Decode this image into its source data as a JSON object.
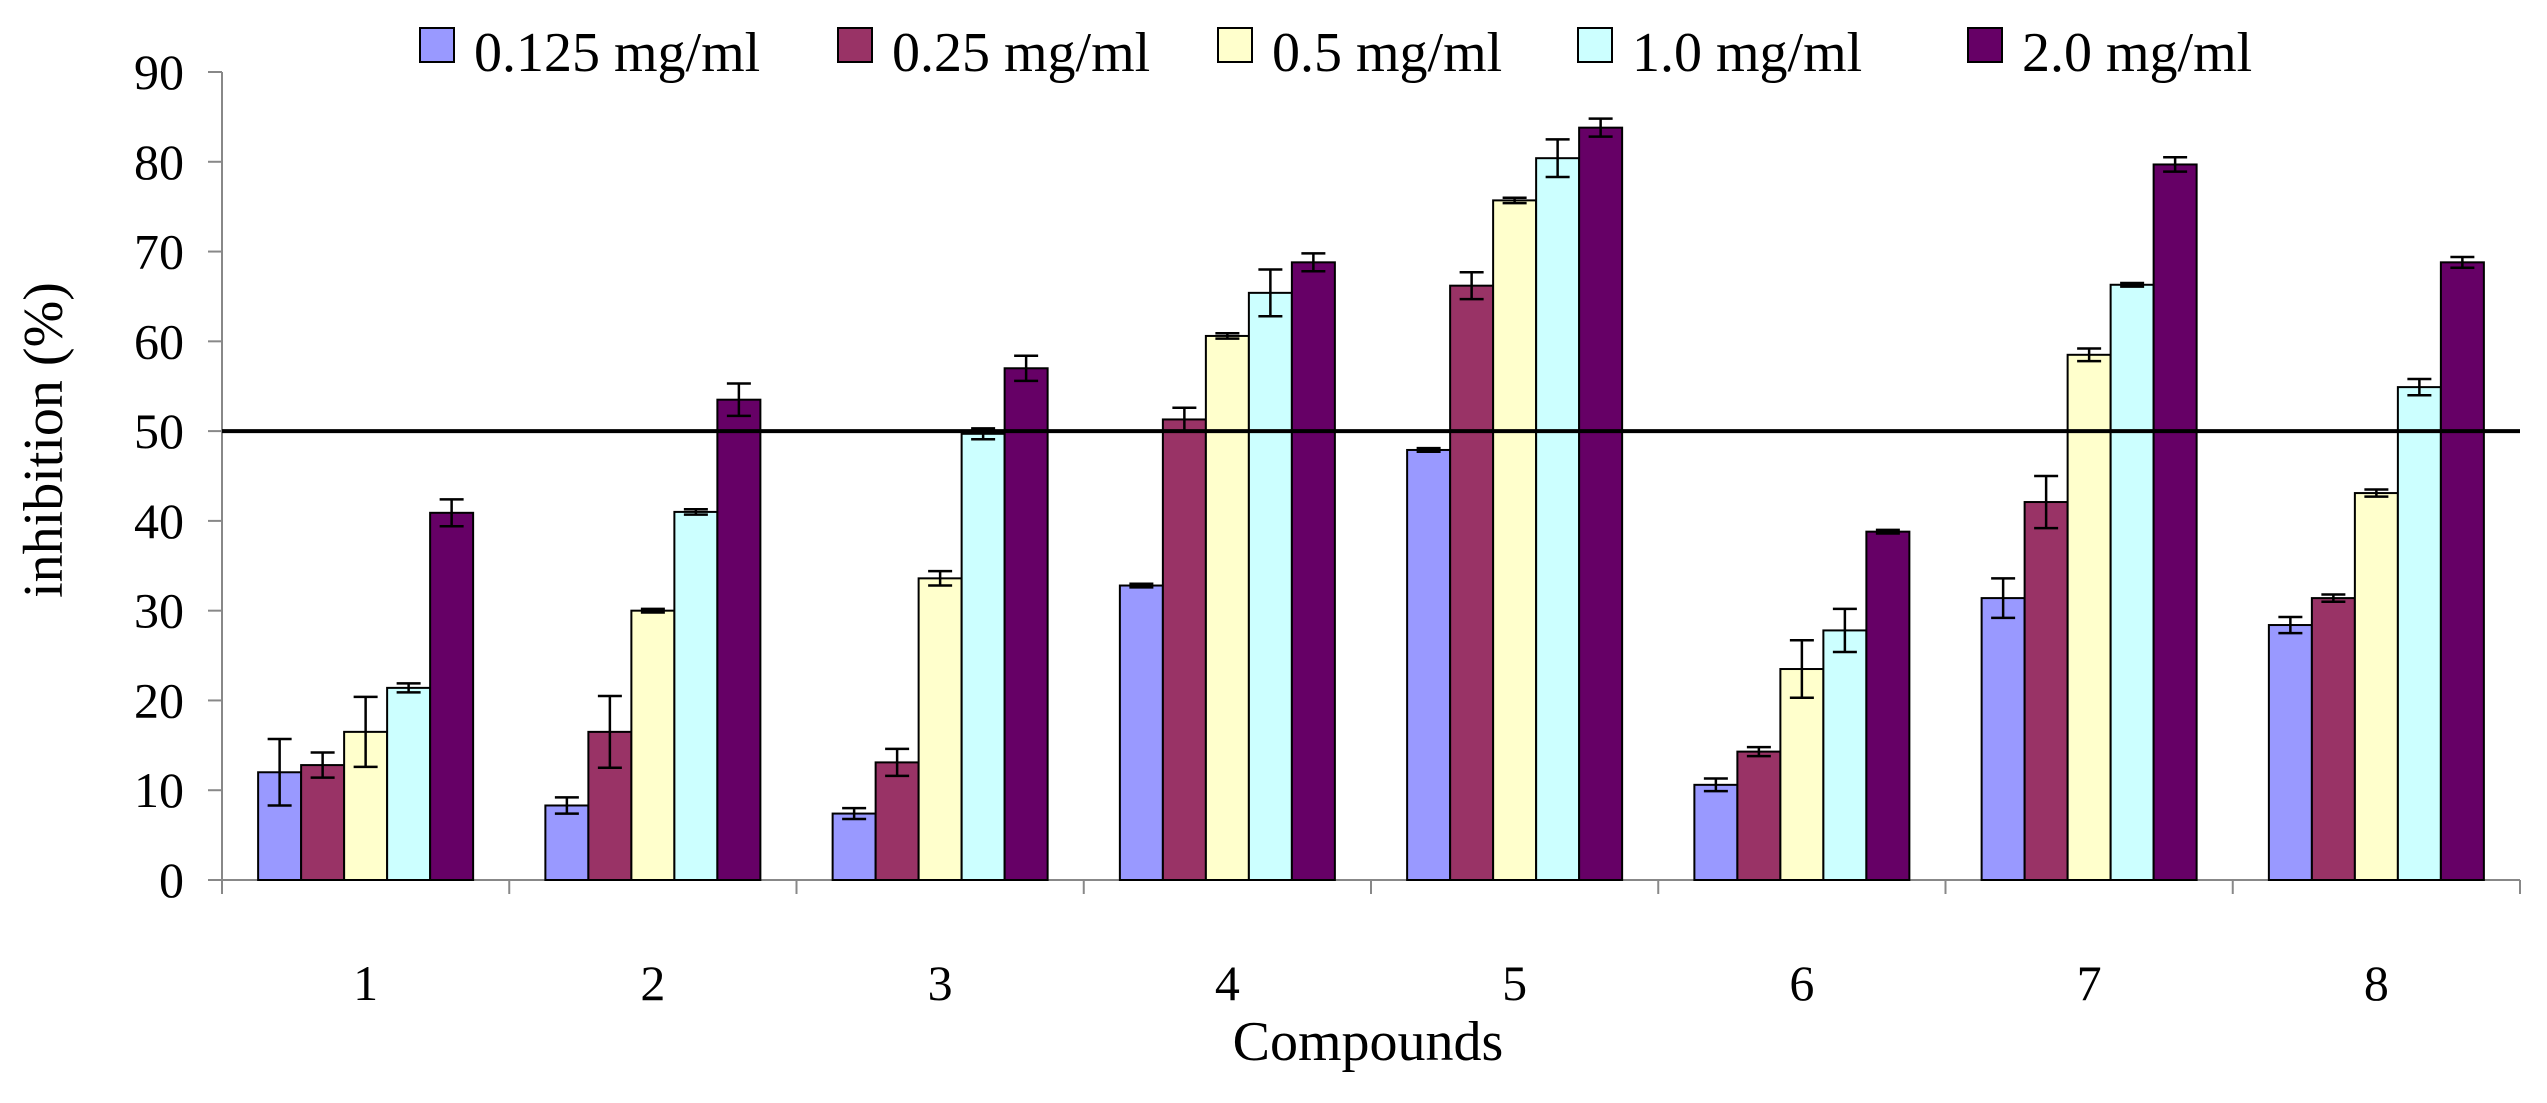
{
  "chart_data": {
    "type": "bar",
    "title": "",
    "xlabel": "Compounds",
    "ylabel": "inhibition (%)",
    "ylim": [
      0,
      90
    ],
    "yticks": [
      0,
      10,
      20,
      30,
      40,
      50,
      60,
      70,
      80,
      90
    ],
    "grid": false,
    "legend_position": "top",
    "reference_line": 50,
    "categories": [
      "1",
      "2",
      "3",
      "4",
      "5",
      "6",
      "7",
      "8"
    ],
    "series": [
      {
        "name": "0.125 mg/ml",
        "color": "#9999ff",
        "values": [
          12.0,
          8.3,
          7.4,
          32.8,
          47.9,
          10.6,
          31.4,
          28.4
        ],
        "errors": [
          3.7,
          0.9,
          0.6,
          0.2,
          0.2,
          0.7,
          2.2,
          0.9
        ]
      },
      {
        "name": "0.25 mg/ml",
        "color": "#993366",
        "values": [
          12.8,
          16.5,
          13.1,
          51.3,
          66.2,
          14.3,
          42.1,
          31.4
        ],
        "errors": [
          1.4,
          4.0,
          1.5,
          1.3,
          1.5,
          0.5,
          2.9,
          0.4
        ]
      },
      {
        "name": "0.5 mg/ml",
        "color": "#ffffcc",
        "values": [
          16.5,
          30.0,
          33.6,
          60.6,
          75.7,
          23.5,
          58.5,
          43.1
        ],
        "errors": [
          3.9,
          0.2,
          0.8,
          0.3,
          0.3,
          3.2,
          0.7,
          0.4
        ]
      },
      {
        "name": "1.0 mg/ml",
        "color": "#ccffff",
        "values": [
          21.4,
          41.0,
          49.7,
          65.4,
          80.4,
          27.8,
          66.3,
          54.9
        ],
        "errors": [
          0.5,
          0.3,
          0.6,
          2.6,
          2.1,
          2.4,
          0.2,
          0.9
        ]
      },
      {
        "name": "2.0 mg/ml",
        "color": "#660066",
        "values": [
          40.9,
          53.5,
          57.0,
          68.8,
          83.8,
          38.8,
          79.7,
          68.8
        ],
        "errors": [
          1.5,
          1.8,
          1.4,
          1.0,
          1.0,
          0.2,
          0.8,
          0.6
        ]
      }
    ]
  }
}
